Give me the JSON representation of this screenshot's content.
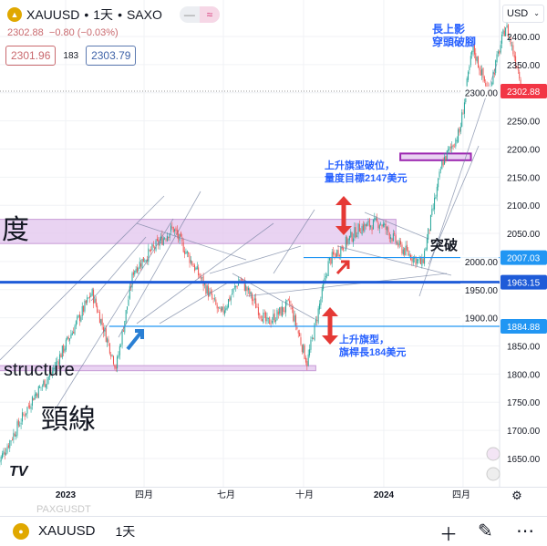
{
  "header": {
    "symbol": "XAUUSD",
    "timeframe": "1天",
    "exchange": "SAXO",
    "price_line": "2302.88",
    "change": "−0.80 (−0.03%)",
    "sell": "2301.96",
    "spread": "183",
    "buy": "2303.79",
    "chart_type_options": [
      "—",
      "≈"
    ]
  },
  "currency": "USD",
  "colors": {
    "up": "#26a69a",
    "down": "#ef5350",
    "line": "#1e88e5",
    "zone": "#e3c8ef",
    "zone_border": "#9c27b0",
    "annotation": "#2962ff",
    "price_tag": "#f23645"
  },
  "chart_data": {
    "type": "candlestick",
    "y_ticks": [
      "2400.00",
      "2350.00",
      "2300.00",
      "2250.00",
      "2200.00",
      "2150.00",
      "2100.00",
      "2050.00",
      "2000.00",
      "1950.00",
      "1900.00",
      "1850.00",
      "1800.00",
      "1750.00",
      "1700.00",
      "1650.00"
    ],
    "ylim": [
      1620,
      2440
    ],
    "x_ticks": [
      {
        "label": "2023",
        "date": "2023-01-01"
      },
      {
        "label": "四月",
        "date": "2023-04-01"
      },
      {
        "label": "七月",
        "date": "2023-07-01"
      },
      {
        "label": "十月",
        "date": "2023-10-01"
      },
      {
        "label": "2024",
        "date": "2024-01-01"
      },
      {
        "label": "四月",
        "date": "2024-04-01"
      }
    ],
    "close_path": [
      [
        "2022-10-15",
        1640
      ],
      [
        "2022-11-25",
        1760
      ],
      [
        "2022-12-15",
        1800
      ],
      [
        "2023-01-31",
        1945
      ],
      [
        "2023-02-28",
        1812
      ],
      [
        "2023-03-20",
        1985
      ],
      [
        "2023-05-04",
        2060
      ],
      [
        "2023-06-28",
        1905
      ],
      [
        "2023-07-20",
        1970
      ],
      [
        "2023-08-20",
        1890
      ],
      [
        "2023-09-15",
        1925
      ],
      [
        "2023-10-05",
        1820
      ],
      [
        "2023-10-30",
        2000
      ],
      [
        "2023-12-04",
        2060
      ],
      [
        "2023-12-28",
        2070
      ],
      [
        "2024-01-20",
        2025
      ],
      [
        "2024-02-14",
        1995
      ],
      [
        "2024-03-08",
        2175
      ],
      [
        "2024-03-28",
        2230
      ],
      [
        "2024-04-12",
        2380
      ],
      [
        "2024-04-30",
        2300
      ],
      [
        "2024-05-20",
        2420
      ],
      [
        "2024-06-10",
        2302.88
      ]
    ],
    "price_labels": [
      {
        "value": "2302.88",
        "color": "#f23645"
      },
      {
        "value": "2007.03",
        "color": "#2196f3"
      },
      {
        "value": "1963.15",
        "color": "#1e5bd8"
      },
      {
        "value": "1884.88",
        "color": "#2196f3"
      }
    ],
    "horizontal_lines": [
      {
        "price": 1963.15,
        "from": "2022-10-01"
      },
      {
        "price": 2007.03,
        "from": "2023-10-01"
      },
      {
        "price": 1884.88,
        "from": "2023-02-20"
      }
    ],
    "zones": [
      {
        "top": 2075,
        "bottom": 2032,
        "from": "2022-10-01",
        "to": "2024-01-15"
      },
      {
        "top": 2192,
        "bottom": 2180,
        "from": "2024-01-20",
        "to": "2024-04-10"
      },
      {
        "top": 1815,
        "bottom": 1806,
        "from": "2022-10-01",
        "to": "2023-10-15"
      }
    ]
  },
  "annotations": {
    "du": "度",
    "structure": "structure",
    "neckline": "頸線",
    "breakout": "突破",
    "flag_break_1": "上升旗型破位，",
    "flag_break_2": "量度目標2147美元",
    "flag_1": "上升旗型，",
    "flag_2": "旗桿長184美元",
    "wick_1": "長上影",
    "wick_2": "穿頭破腳",
    "watermark": "TV"
  },
  "bottom": {
    "ghost": "PAXGUSDT",
    "symbol": "XAUUSD",
    "timeframe": "1天"
  }
}
